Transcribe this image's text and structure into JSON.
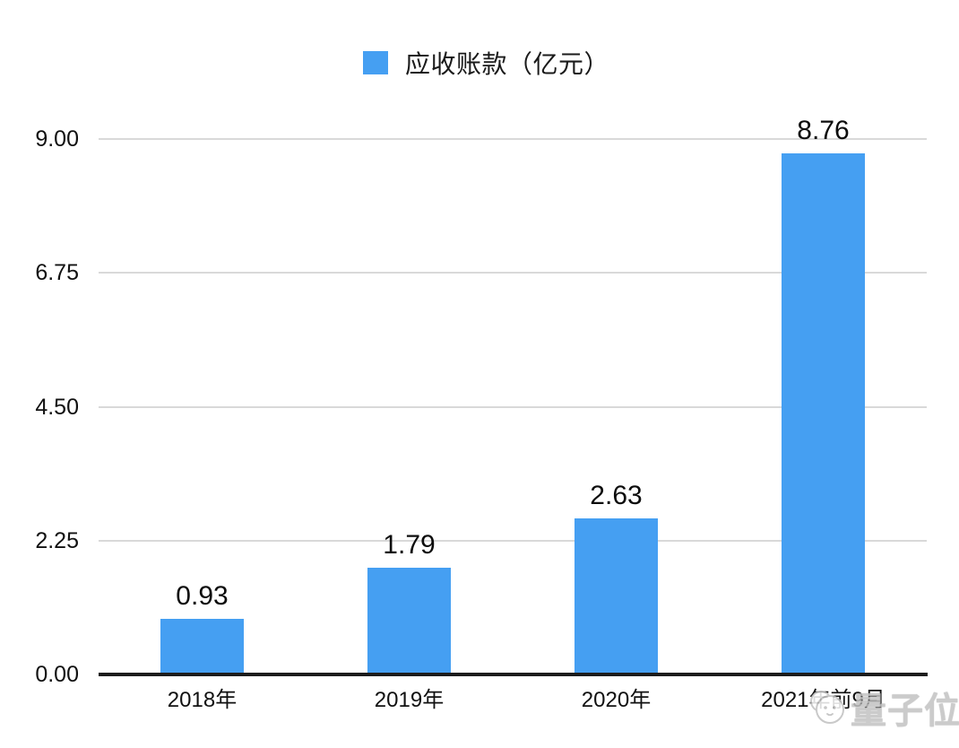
{
  "page": {
    "background_color": "#ffffff"
  },
  "legend": {
    "label": "应收账款（亿元）",
    "swatch_color": "#459ff2"
  },
  "chart_data": {
    "type": "bar",
    "title": "",
    "xlabel": "",
    "ylabel": "",
    "series_name": "应收账款（亿元）",
    "categories": [
      "2018年",
      "2019年",
      "2020年",
      "2021年前9月"
    ],
    "values": [
      0.93,
      1.79,
      2.63,
      8.76
    ],
    "value_labels": [
      "0.93",
      "1.79",
      "2.63",
      "8.76"
    ],
    "ylim": [
      0,
      9
    ],
    "yticks": [
      {
        "value": 0,
        "label": "0.00"
      },
      {
        "value": 2.25,
        "label": "2.25"
      },
      {
        "value": 4.5,
        "label": "4.50"
      },
      {
        "value": 6.75,
        "label": "6.75"
      },
      {
        "value": 9,
        "label": "9.00"
      }
    ],
    "grid": true,
    "legend_position": "top-center",
    "bar_color": "#459ff2",
    "gridline_color": "#d9d9d9",
    "axis_color": "#1c1c1c",
    "text_color": "#111111"
  },
  "watermark": {
    "text": "量子位",
    "color": "#c3c3c3"
  }
}
